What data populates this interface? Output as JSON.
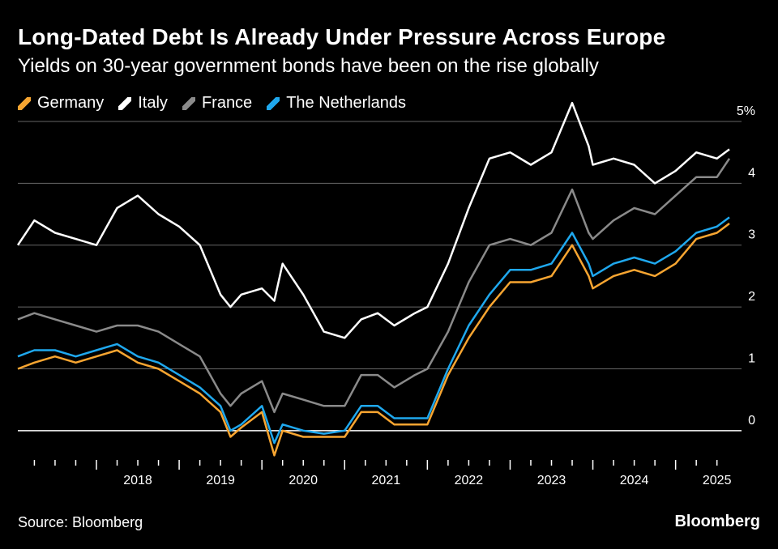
{
  "header": {
    "title": "Long-Dated Debt Is Already Under Pressure Across Europe",
    "subtitle": "Yields on 30-year government bonds have been on the rise globally"
  },
  "footer": {
    "source": "Source: Bloomberg",
    "brand": "Bloomberg"
  },
  "chart_data": {
    "type": "line",
    "title": "Long-Dated Debt Is Already Under Pressure Across Europe",
    "subtitle": "Yields on 30-year government bonds have been on the rise globally",
    "xlabel": "",
    "ylabel": "",
    "xlim": [
      2017.05,
      2025.65
    ],
    "ylim": [
      -0.5,
      5.0
    ],
    "y_ticks": [
      {
        "value": 0,
        "label": "0"
      },
      {
        "value": 1,
        "label": "1"
      },
      {
        "value": 2,
        "label": "2"
      },
      {
        "value": 3,
        "label": "3"
      },
      {
        "value": 4,
        "label": "4"
      },
      {
        "value": 5,
        "label": "5%"
      }
    ],
    "x_tick_labels": [
      "2018",
      "2019",
      "2020",
      "2021",
      "2022",
      "2023",
      "2024",
      "2025"
    ],
    "grid": true,
    "legend_position": "top-left",
    "series": [
      {
        "name": "Germany",
        "color": "#f7a531",
        "points": [
          [
            2017.05,
            1.0
          ],
          [
            2017.25,
            1.1
          ],
          [
            2017.5,
            1.2
          ],
          [
            2017.75,
            1.1
          ],
          [
            2018.0,
            1.2
          ],
          [
            2018.25,
            1.3
          ],
          [
            2018.5,
            1.1
          ],
          [
            2018.75,
            1.0
          ],
          [
            2019.0,
            0.8
          ],
          [
            2019.25,
            0.6
          ],
          [
            2019.5,
            0.3
          ],
          [
            2019.62,
            -0.1
          ],
          [
            2019.75,
            0.05
          ],
          [
            2020.0,
            0.3
          ],
          [
            2020.15,
            -0.4
          ],
          [
            2020.25,
            0.0
          ],
          [
            2020.5,
            -0.1
          ],
          [
            2020.75,
            -0.1
          ],
          [
            2021.0,
            -0.1
          ],
          [
            2021.2,
            0.3
          ],
          [
            2021.4,
            0.3
          ],
          [
            2021.6,
            0.1
          ],
          [
            2021.85,
            0.1
          ],
          [
            2022.0,
            0.1
          ],
          [
            2022.25,
            0.9
          ],
          [
            2022.5,
            1.5
          ],
          [
            2022.75,
            2.0
          ],
          [
            2023.0,
            2.4
          ],
          [
            2023.25,
            2.4
          ],
          [
            2023.5,
            2.5
          ],
          [
            2023.75,
            3.0
          ],
          [
            2023.95,
            2.5
          ],
          [
            2024.0,
            2.3
          ],
          [
            2024.25,
            2.5
          ],
          [
            2024.5,
            2.6
          ],
          [
            2024.75,
            2.5
          ],
          [
            2025.0,
            2.7
          ],
          [
            2025.25,
            3.1
          ],
          [
            2025.5,
            3.2
          ],
          [
            2025.65,
            3.35
          ]
        ]
      },
      {
        "name": "Italy",
        "color": "#ffffff",
        "points": [
          [
            2017.05,
            3.0
          ],
          [
            2017.25,
            3.4
          ],
          [
            2017.5,
            3.2
          ],
          [
            2017.75,
            3.1
          ],
          [
            2018.0,
            3.0
          ],
          [
            2018.25,
            3.6
          ],
          [
            2018.5,
            3.8
          ],
          [
            2018.75,
            3.5
          ],
          [
            2019.0,
            3.3
          ],
          [
            2019.25,
            3.0
          ],
          [
            2019.5,
            2.2
          ],
          [
            2019.62,
            2.0
          ],
          [
            2019.75,
            2.2
          ],
          [
            2020.0,
            2.3
          ],
          [
            2020.15,
            2.1
          ],
          [
            2020.25,
            2.7
          ],
          [
            2020.5,
            2.2
          ],
          [
            2020.75,
            1.6
          ],
          [
            2021.0,
            1.5
          ],
          [
            2021.2,
            1.8
          ],
          [
            2021.4,
            1.9
          ],
          [
            2021.6,
            1.7
          ],
          [
            2021.85,
            1.9
          ],
          [
            2022.0,
            2.0
          ],
          [
            2022.25,
            2.7
          ],
          [
            2022.5,
            3.6
          ],
          [
            2022.75,
            4.4
          ],
          [
            2023.0,
            4.5
          ],
          [
            2023.25,
            4.3
          ],
          [
            2023.5,
            4.5
          ],
          [
            2023.75,
            5.3
          ],
          [
            2023.95,
            4.6
          ],
          [
            2024.0,
            4.3
          ],
          [
            2024.25,
            4.4
          ],
          [
            2024.5,
            4.3
          ],
          [
            2024.75,
            4.0
          ],
          [
            2025.0,
            4.2
          ],
          [
            2025.25,
            4.5
          ],
          [
            2025.5,
            4.4
          ],
          [
            2025.65,
            4.55
          ]
        ]
      },
      {
        "name": "France",
        "color": "#8a8a8a",
        "points": [
          [
            2017.05,
            1.8
          ],
          [
            2017.25,
            1.9
          ],
          [
            2017.5,
            1.8
          ],
          [
            2017.75,
            1.7
          ],
          [
            2018.0,
            1.6
          ],
          [
            2018.25,
            1.7
          ],
          [
            2018.5,
            1.7
          ],
          [
            2018.75,
            1.6
          ],
          [
            2019.0,
            1.4
          ],
          [
            2019.25,
            1.2
          ],
          [
            2019.5,
            0.6
          ],
          [
            2019.62,
            0.4
          ],
          [
            2019.75,
            0.6
          ],
          [
            2020.0,
            0.8
          ],
          [
            2020.15,
            0.3
          ],
          [
            2020.25,
            0.6
          ],
          [
            2020.5,
            0.5
          ],
          [
            2020.75,
            0.4
          ],
          [
            2021.0,
            0.4
          ],
          [
            2021.2,
            0.9
          ],
          [
            2021.4,
            0.9
          ],
          [
            2021.6,
            0.7
          ],
          [
            2021.85,
            0.9
          ],
          [
            2022.0,
            1.0
          ],
          [
            2022.25,
            1.6
          ],
          [
            2022.5,
            2.4
          ],
          [
            2022.75,
            3.0
          ],
          [
            2023.0,
            3.1
          ],
          [
            2023.25,
            3.0
          ],
          [
            2023.5,
            3.2
          ],
          [
            2023.75,
            3.9
          ],
          [
            2023.95,
            3.2
          ],
          [
            2024.0,
            3.1
          ],
          [
            2024.25,
            3.4
          ],
          [
            2024.5,
            3.6
          ],
          [
            2024.75,
            3.5
          ],
          [
            2025.0,
            3.8
          ],
          [
            2025.25,
            4.1
          ],
          [
            2025.5,
            4.1
          ],
          [
            2025.65,
            4.4
          ]
        ]
      },
      {
        "name": "The Netherlands",
        "color": "#1fa8ee",
        "points": [
          [
            2017.05,
            1.2
          ],
          [
            2017.25,
            1.3
          ],
          [
            2017.5,
            1.3
          ],
          [
            2017.75,
            1.2
          ],
          [
            2018.0,
            1.3
          ],
          [
            2018.25,
            1.4
          ],
          [
            2018.5,
            1.2
          ],
          [
            2018.75,
            1.1
          ],
          [
            2019.0,
            0.9
          ],
          [
            2019.25,
            0.7
          ],
          [
            2019.5,
            0.4
          ],
          [
            2019.62,
            0.0
          ],
          [
            2019.75,
            0.1
          ],
          [
            2020.0,
            0.4
          ],
          [
            2020.15,
            -0.2
          ],
          [
            2020.25,
            0.1
          ],
          [
            2020.5,
            0.0
          ],
          [
            2020.75,
            -0.05
          ],
          [
            2021.0,
            0.0
          ],
          [
            2021.2,
            0.4
          ],
          [
            2021.4,
            0.4
          ],
          [
            2021.6,
            0.2
          ],
          [
            2021.85,
            0.2
          ],
          [
            2022.0,
            0.2
          ],
          [
            2022.25,
            1.0
          ],
          [
            2022.5,
            1.7
          ],
          [
            2022.75,
            2.2
          ],
          [
            2023.0,
            2.6
          ],
          [
            2023.25,
            2.6
          ],
          [
            2023.5,
            2.7
          ],
          [
            2023.75,
            3.2
          ],
          [
            2023.95,
            2.7
          ],
          [
            2024.0,
            2.5
          ],
          [
            2024.25,
            2.7
          ],
          [
            2024.5,
            2.8
          ],
          [
            2024.75,
            2.7
          ],
          [
            2025.0,
            2.9
          ],
          [
            2025.25,
            3.2
          ],
          [
            2025.5,
            3.3
          ],
          [
            2025.65,
            3.45
          ]
        ]
      }
    ]
  }
}
